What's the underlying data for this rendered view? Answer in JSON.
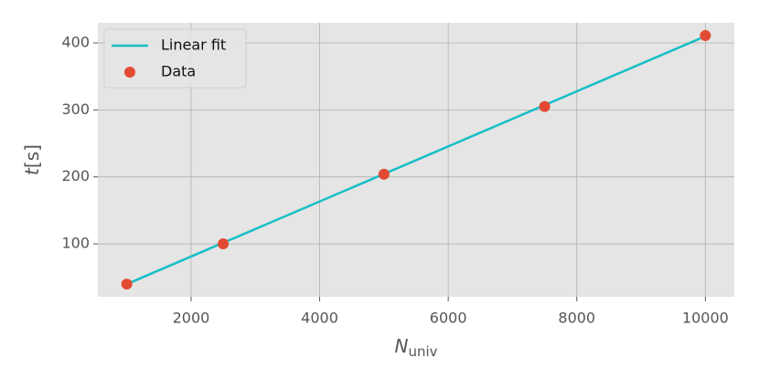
{
  "chart_data": {
    "type": "line",
    "x_label": {
      "symbol": "N",
      "subscript": "univ"
    },
    "y_label": {
      "symbol": "t",
      "unit": "[s]"
    },
    "xlim": [
      550,
      10450
    ],
    "ylim": [
      21,
      430
    ],
    "xticks": [
      2000,
      4000,
      6000,
      8000,
      10000
    ],
    "yticks": [
      100,
      200,
      300,
      400
    ],
    "grid": true,
    "legend": "upper-left",
    "series": [
      {
        "name": "Linear fit",
        "kind": "line",
        "color": "#17bec6",
        "x": [
          1000,
          10000
        ],
        "values": [
          40,
          410
        ]
      },
      {
        "name": "Data",
        "kind": "scatter",
        "color": "#e24a33",
        "x": [
          1000,
          2500,
          5000,
          7500,
          10000
        ],
        "values": [
          40,
          100,
          204,
          305,
          411
        ]
      }
    ]
  }
}
